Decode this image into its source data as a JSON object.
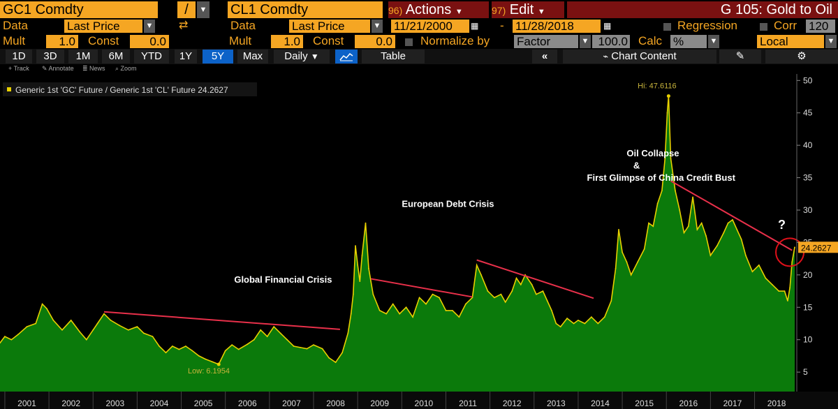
{
  "toolbar1": {
    "ticker1": "GC1 Comdty",
    "op": "/",
    "ticker2": "CL1 Comdty",
    "actions_num": "96)",
    "actions": "Actions",
    "edit_num": "97)",
    "edit": "Edit",
    "title": "G 105: Gold to Oil"
  },
  "toolbar2": {
    "data_label1": "Data",
    "data_value1": "Last Price",
    "data_label2": "Data",
    "data_value2": "Last Price",
    "start_date": "11/21/2000",
    "dash": "-",
    "end_date": "11/28/2018",
    "regression": "Regression",
    "corr": "Corr",
    "corr_value": "120"
  },
  "toolbar3": {
    "mult_label1": "Mult",
    "mult_value1": "1.0",
    "const_label1": "Const",
    "const_value1": "0.0",
    "mult_label2": "Mult",
    "mult_value2": "1.0",
    "const_label2": "Const",
    "const_value2": "0.0",
    "normalize_label": "Normalize by",
    "normalize_value": "Factor",
    "factor_value": "100.0",
    "calc_label": "Calc",
    "calc_value": "%",
    "local_value": "Local"
  },
  "toolbar4": {
    "periods": [
      "1D",
      "3D",
      "1M",
      "6M",
      "YTD",
      "1Y",
      "5Y",
      "Max"
    ],
    "active_period": "5Y",
    "frequency": "Daily",
    "table": "Table",
    "chart_content": "Chart Content"
  },
  "tools": [
    "Track",
    "Annotate",
    "News",
    "Zoom"
  ],
  "colors": {
    "accent": "#f5a623",
    "area_fill": "#0b7a0b",
    "line": "#e8d000",
    "trend": "#e8304a",
    "active": "#0c62c8"
  },
  "chart_data": {
    "type": "area",
    "legend": "Generic 1st 'GC' Future / Generic 1st 'CL' Future 24.2627",
    "last_value_label": "24.2627",
    "x_range": [
      2000.89,
      2018.91
    ],
    "ylim": [
      2,
      51
    ],
    "yticks": [
      5,
      10,
      15,
      20,
      25,
      30,
      35,
      40,
      45,
      50
    ],
    "xtick_labels": [
      "2001",
      "2002",
      "2003",
      "2004",
      "2005",
      "2006",
      "2007",
      "2008",
      "2009",
      "2010",
      "2011",
      "2012",
      "2013",
      "2014",
      "2015",
      "2016",
      "2017",
      "2018"
    ],
    "hi_label": "Hi: 47.6116",
    "low_label": "Low: 6.1954",
    "series": [
      {
        "values": [
          [
            2000.89,
            9.5
          ],
          [
            2001.0,
            10.5
          ],
          [
            2001.15,
            10.0
          ],
          [
            2001.3,
            10.8
          ],
          [
            2001.5,
            12.0
          ],
          [
            2001.7,
            12.5
          ],
          [
            2001.85,
            15.5
          ],
          [
            2001.95,
            14.8
          ],
          [
            2002.1,
            13.0
          ],
          [
            2002.3,
            11.5
          ],
          [
            2002.5,
            13.0
          ],
          [
            2002.7,
            11.2
          ],
          [
            2002.85,
            10.0
          ],
          [
            2003.0,
            11.5
          ],
          [
            2003.1,
            12.5
          ],
          [
            2003.25,
            14.0
          ],
          [
            2003.4,
            13.0
          ],
          [
            2003.6,
            12.2
          ],
          [
            2003.8,
            11.5
          ],
          [
            2004.0,
            12.0
          ],
          [
            2004.15,
            11.0
          ],
          [
            2004.35,
            10.5
          ],
          [
            2004.5,
            9.0
          ],
          [
            2004.65,
            8.0
          ],
          [
            2004.8,
            9.0
          ],
          [
            2004.95,
            8.5
          ],
          [
            2005.1,
            9.0
          ],
          [
            2005.25,
            8.3
          ],
          [
            2005.4,
            7.5
          ],
          [
            2005.55,
            7.0
          ],
          [
            2005.7,
            6.6
          ],
          [
            2005.85,
            6.2
          ],
          [
            2006.0,
            8.3
          ],
          [
            2006.15,
            9.2
          ],
          [
            2006.3,
            8.5
          ],
          [
            2006.5,
            9.3
          ],
          [
            2006.65,
            10.0
          ],
          [
            2006.8,
            11.5
          ],
          [
            2006.95,
            10.5
          ],
          [
            2007.1,
            12.0
          ],
          [
            2007.25,
            11.0
          ],
          [
            2007.4,
            10.0
          ],
          [
            2007.55,
            9.0
          ],
          [
            2007.7,
            8.8
          ],
          [
            2007.85,
            8.6
          ],
          [
            2008.0,
            9.2
          ],
          [
            2008.2,
            8.6
          ],
          [
            2008.35,
            7.2
          ],
          [
            2008.5,
            6.5
          ],
          [
            2008.65,
            8.0
          ],
          [
            2008.78,
            11.0
          ],
          [
            2008.85,
            14.0
          ],
          [
            2008.9,
            17.0
          ],
          [
            2008.95,
            24.5
          ],
          [
            2009.0,
            21.5
          ],
          [
            2009.05,
            19.0
          ],
          [
            2009.1,
            23.0
          ],
          [
            2009.18,
            28.0
          ],
          [
            2009.25,
            21.0
          ],
          [
            2009.35,
            17.0
          ],
          [
            2009.5,
            14.5
          ],
          [
            2009.65,
            14.0
          ],
          [
            2009.8,
            15.5
          ],
          [
            2009.95,
            14.0
          ],
          [
            2010.1,
            15.0
          ],
          [
            2010.25,
            13.5
          ],
          [
            2010.4,
            16.5
          ],
          [
            2010.55,
            15.5
          ],
          [
            2010.7,
            17.0
          ],
          [
            2010.85,
            16.5
          ],
          [
            2011.0,
            14.5
          ],
          [
            2011.15,
            14.5
          ],
          [
            2011.3,
            13.5
          ],
          [
            2011.45,
            15.5
          ],
          [
            2011.6,
            16.5
          ],
          [
            2011.7,
            21.5
          ],
          [
            2011.8,
            20.0
          ],
          [
            2011.95,
            17.5
          ],
          [
            2012.1,
            16.5
          ],
          [
            2012.25,
            17.0
          ],
          [
            2012.35,
            15.8
          ],
          [
            2012.5,
            17.5
          ],
          [
            2012.6,
            19.5
          ],
          [
            2012.7,
            18.5
          ],
          [
            2012.8,
            20.0
          ],
          [
            2012.95,
            18.5
          ],
          [
            2013.05,
            17.0
          ],
          [
            2013.2,
            17.5
          ],
          [
            2013.3,
            16.0
          ],
          [
            2013.4,
            14.5
          ],
          [
            2013.5,
            12.5
          ],
          [
            2013.6,
            12.0
          ],
          [
            2013.75,
            13.3
          ],
          [
            2013.9,
            12.5
          ],
          [
            2014.0,
            13.0
          ],
          [
            2014.15,
            12.5
          ],
          [
            2014.3,
            13.5
          ],
          [
            2014.45,
            12.5
          ],
          [
            2014.6,
            13.5
          ],
          [
            2014.75,
            16.0
          ],
          [
            2014.85,
            21.0
          ],
          [
            2014.92,
            27.0
          ],
          [
            2015.0,
            23.5
          ],
          [
            2015.1,
            22.0
          ],
          [
            2015.2,
            20.0
          ],
          [
            2015.35,
            22.0
          ],
          [
            2015.5,
            24.0
          ],
          [
            2015.6,
            28.0
          ],
          [
            2015.7,
            27.5
          ],
          [
            2015.8,
            31.0
          ],
          [
            2015.9,
            33.0
          ],
          [
            2015.97,
            38.0
          ],
          [
            2016.02,
            45.0
          ],
          [
            2016.05,
            47.6
          ],
          [
            2016.1,
            38.0
          ],
          [
            2016.2,
            33.0
          ],
          [
            2016.3,
            30.0
          ],
          [
            2016.4,
            26.5
          ],
          [
            2016.5,
            27.5
          ],
          [
            2016.6,
            32.0
          ],
          [
            2016.7,
            27.0
          ],
          [
            2016.8,
            28.0
          ],
          [
            2016.9,
            26.0
          ],
          [
            2017.0,
            23.0
          ],
          [
            2017.15,
            24.5
          ],
          [
            2017.3,
            26.5
          ],
          [
            2017.4,
            28.0
          ],
          [
            2017.5,
            28.5
          ],
          [
            2017.6,
            27.0
          ],
          [
            2017.7,
            25.5
          ],
          [
            2017.8,
            23.0
          ],
          [
            2017.95,
            20.5
          ],
          [
            2018.1,
            21.5
          ],
          [
            2018.25,
            19.5
          ],
          [
            2018.4,
            18.5
          ],
          [
            2018.55,
            17.5
          ],
          [
            2018.68,
            17.5
          ],
          [
            2018.75,
            16.0
          ],
          [
            2018.8,
            18.0
          ],
          [
            2018.85,
            22.0
          ],
          [
            2018.91,
            24.26
          ]
        ]
      }
    ],
    "trend_lines": [
      {
        "x1": 2003.25,
        "y1": 14.3,
        "x2": 2008.6,
        "y2": 11.6
      },
      {
        "x1": 2009.3,
        "y1": 19.4,
        "x2": 2011.6,
        "y2": 16.6
      },
      {
        "x1": 2011.7,
        "y1": 22.3,
        "x2": 2014.35,
        "y2": 16.4
      },
      {
        "x1": 2016.1,
        "y1": 34.5,
        "x2": 2018.85,
        "y2": 23.8
      }
    ],
    "annotations": [
      {
        "text": "Global Financial Crisis",
        "x": 2006.2,
        "y": 18.8
      },
      {
        "text": "European Debt Crisis",
        "x": 2010.0,
        "y": 30.5
      },
      {
        "text": "Oil Collapse",
        "x": 2015.1,
        "y": 38.3
      },
      {
        "text": "&",
        "x": 2015.25,
        "y": 36.4
      },
      {
        "text": "First Glimpse of China Credit Bust",
        "x": 2014.2,
        "y": 34.5
      },
      {
        "text": "?",
        "x": 2018.53,
        "y": 27.1
      }
    ],
    "circle": {
      "x": 2018.8,
      "y": 23.5
    }
  }
}
